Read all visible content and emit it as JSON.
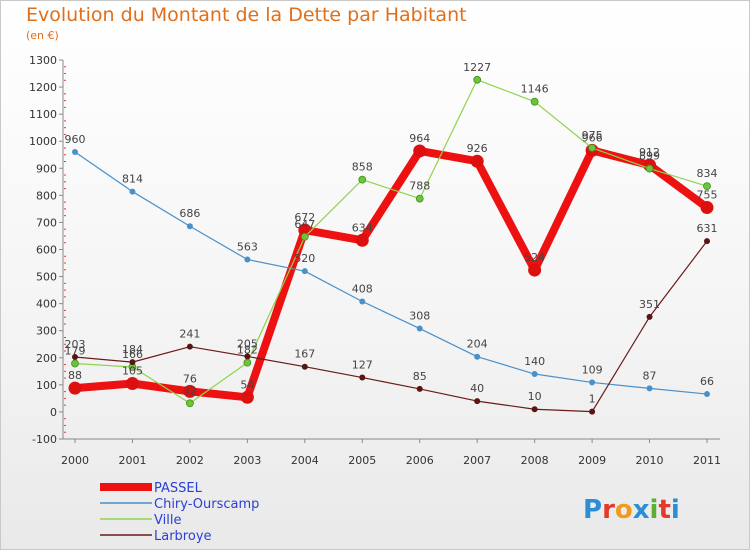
{
  "chart_data": {
    "type": "line",
    "title": "Evolution du Montant de la Dette par Habitant",
    "subtitle": "(en €)",
    "x": [
      "2000",
      "2001",
      "2002",
      "2003",
      "2004",
      "2005",
      "2006",
      "2007",
      "2008",
      "2009",
      "2010",
      "2011"
    ],
    "ylim": [
      -100,
      1300
    ],
    "yticks": [
      -100,
      0,
      100,
      200,
      300,
      400,
      500,
      600,
      700,
      800,
      900,
      1000,
      1100,
      1200,
      1300
    ],
    "grid": false,
    "legend_position": "bottom-left",
    "series": [
      {
        "name": "PASSEL",
        "color": "#ee1111",
        "values": [
          88,
          105,
          76,
          54,
          672,
          634,
          964,
          926,
          524,
          966,
          912,
          755
        ]
      },
      {
        "name": "Chiry-Ourscamp",
        "color": "#4a90c9",
        "values": [
          960,
          814,
          686,
          563,
          520,
          408,
          308,
          204,
          140,
          109,
          87,
          66
        ]
      },
      {
        "name": "Ville",
        "color": "#8fd44a",
        "values": [
          179,
          166,
          32,
          182,
          647,
          858,
          788,
          1227,
          1146,
          975,
          899,
          834
        ]
      },
      {
        "name": "Larbroye",
        "color": "#6b1a1a",
        "values": [
          203,
          184,
          241,
          205,
          167,
          127,
          85,
          40,
          10,
          1,
          351,
          631
        ]
      }
    ]
  },
  "logo": {
    "text": "Proxiti"
  }
}
